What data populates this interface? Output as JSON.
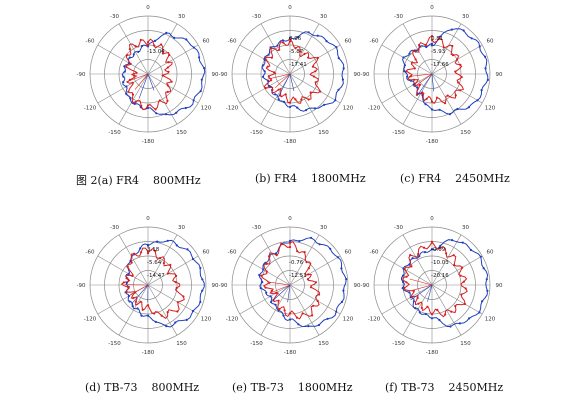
{
  "colors": {
    "grid": "#8a8a8a",
    "angle_label": "#333333",
    "trace_blue": "#1f3fbf",
    "trace_red": "#d81e1e",
    "annotation": "#111111"
  },
  "angle_labels": [
    "0",
    "30",
    "60",
    "90",
    "120",
    "150",
    "-180",
    "-150",
    "-120",
    "-90",
    "-60",
    "-30"
  ],
  "panels": [
    {
      "caption": "图 2(a) FR4    800MHz",
      "annotations": [
        "-13.04"
      ]
    },
    {
      "caption": "(b) FR4    1800MHz",
      "annotations": [
        "0.96",
        "-5.87",
        "-17.41"
      ]
    },
    {
      "caption": "(c) FR4    2450MHz",
      "annotations": [
        "0.81",
        "-5.93",
        "-17.66"
      ]
    },
    {
      "caption": "(d) TB-73    800MHz",
      "annotations": [
        "3.18",
        "-5.64",
        "-14.47"
      ]
    },
    {
      "caption": "(e) TB-73    1800MHz",
      "annotations": [
        "-0.76",
        "-12.51"
      ]
    },
    {
      "caption": "(f) TB-73    2450MHz",
      "annotations": [
        "-0.09",
        "-10.03",
        "-20.16"
      ]
    }
  ]
}
